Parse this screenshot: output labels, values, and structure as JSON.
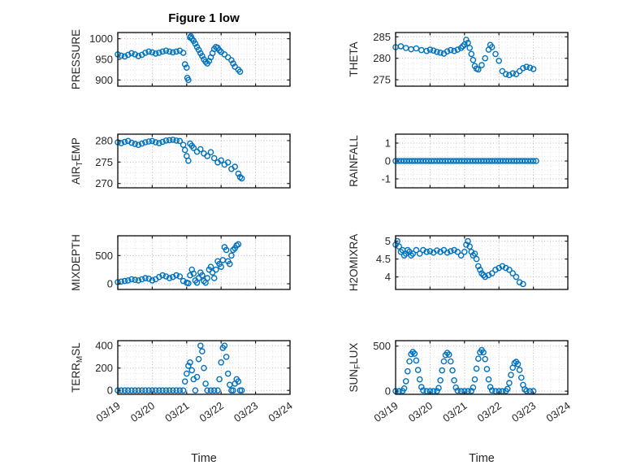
{
  "figure": {
    "title": "Figure 1 low",
    "marker_color": "#0072BD",
    "axis_color": "#1a1a1a",
    "grid_color": "#b8b8b8",
    "minor_grid_color": "#e2e2e2"
  },
  "x_axis": {
    "lim": [
      0,
      5
    ],
    "ticks": [
      0,
      1,
      2,
      3,
      4,
      5
    ],
    "labels": [
      "03/19",
      "03/20",
      "03/21",
      "03/22",
      "03/23",
      "03/24"
    ],
    "label": "Time"
  },
  "chart_data": [
    {
      "type": "scatter",
      "name": "pressure",
      "ylabel_segments": [
        {
          "t": "PRESSURE"
        }
      ],
      "ylim": [
        885,
        1015
      ],
      "yticks": [
        900,
        950,
        1000
      ],
      "x": [
        0,
        0.1,
        0.2,
        0.3,
        0.4,
        0.5,
        0.6,
        0.7,
        0.8,
        0.9,
        1.0,
        1.1,
        1.2,
        1.3,
        1.4,
        1.5,
        1.6,
        1.7,
        1.8,
        1.9,
        1.95,
        2.0,
        2.02,
        2.05,
        2.1,
        2.12,
        2.15,
        2.2,
        2.25,
        2.3,
        2.35,
        2.4,
        2.45,
        2.5,
        2.55,
        2.6,
        2.65,
        2.7,
        2.75,
        2.8,
        2.85,
        2.9,
        2.95,
        3.0,
        3.1,
        3.2,
        3.3,
        3.35,
        3.4,
        3.5,
        3.55
      ],
      "y": [
        962,
        959,
        957,
        961,
        965,
        962,
        958,
        961,
        966,
        969,
        967,
        964,
        966,
        969,
        971,
        969,
        967,
        969,
        971,
        966,
        938,
        930,
        905,
        900,
        1003,
        1006,
        1000,
        995,
        988,
        980,
        973,
        965,
        958,
        950,
        944,
        940,
        946,
        955,
        965,
        975,
        980,
        978,
        972,
        968,
        962,
        955,
        948,
        940,
        932,
        925,
        920
      ]
    },
    {
      "type": "scatter",
      "name": "theta",
      "ylabel_segments": [
        {
          "t": "THETA"
        }
      ],
      "ylim": [
        273.5,
        286
      ],
      "yticks": [
        275,
        280,
        285
      ],
      "x": [
        0,
        0.15,
        0.3,
        0.45,
        0.6,
        0.75,
        0.9,
        1.0,
        1.1,
        1.2,
        1.3,
        1.4,
        1.5,
        1.6,
        1.7,
        1.8,
        1.9,
        1.95,
        2.0,
        2.05,
        2.1,
        2.15,
        2.2,
        2.25,
        2.3,
        2.35,
        2.4,
        2.5,
        2.6,
        2.7,
        2.75,
        2.8,
        2.9,
        3.0,
        3.1,
        3.2,
        3.3,
        3.4,
        3.5,
        3.6,
        3.7,
        3.8,
        3.9,
        4.0
      ],
      "y": [
        282.6,
        282.8,
        282.4,
        282.1,
        282.3,
        281.9,
        281.7,
        282.0,
        281.8,
        281.5,
        281.3,
        281.1,
        281.6,
        281.9,
        281.7,
        282.0,
        282.4,
        282.8,
        283.2,
        284.3,
        283.6,
        282.4,
        281.0,
        279.6,
        278.2,
        277.6,
        277.4,
        278.4,
        280.0,
        282.0,
        283.1,
        282.6,
        281.0,
        279.4,
        277.0,
        276.3,
        276.1,
        276.5,
        276.3,
        277.0,
        277.7,
        278.0,
        277.8,
        277.5
      ]
    },
    {
      "type": "scatter",
      "name": "air-temp",
      "ylabel_segments": [
        {
          "t": "AIR"
        },
        {
          "t": "T",
          "sub": true
        },
        {
          "t": "EMP"
        }
      ],
      "ylim": [
        269,
        281.5
      ],
      "yticks": [
        270,
        275,
        280
      ],
      "x": [
        0,
        0.1,
        0.2,
        0.3,
        0.4,
        0.5,
        0.6,
        0.7,
        0.8,
        0.9,
        1.0,
        1.1,
        1.2,
        1.3,
        1.4,
        1.5,
        1.6,
        1.7,
        1.8,
        1.9,
        1.95,
        2.0,
        2.05,
        2.1,
        2.15,
        2.2,
        2.3,
        2.4,
        2.5,
        2.6,
        2.7,
        2.8,
        2.9,
        3.0,
        3.1,
        3.2,
        3.3,
        3.4,
        3.5,
        3.55,
        3.6
      ],
      "y": [
        279.6,
        279.4,
        279.7,
        279.9,
        279.5,
        279.2,
        279.0,
        279.3,
        279.6,
        279.8,
        279.9,
        279.6,
        279.4,
        279.7,
        280.0,
        280.1,
        280.2,
        280.0,
        279.9,
        279.0,
        277.8,
        276.4,
        275.3,
        279.3,
        278.8,
        278.3,
        277.4,
        278.0,
        277.0,
        276.4,
        277.3,
        275.9,
        274.9,
        275.4,
        274.4,
        274.9,
        273.4,
        273.9,
        272.3,
        271.5,
        271.2
      ]
    },
    {
      "type": "scatter",
      "name": "rainfall",
      "ylabel_segments": [
        {
          "t": "RAINFALL"
        }
      ],
      "ylim": [
        -1.5,
        1.5
      ],
      "yticks": [
        -1,
        0,
        1
      ],
      "x": [
        0,
        0.08,
        0.16,
        0.24,
        0.32,
        0.4,
        0.48,
        0.56,
        0.64,
        0.72,
        0.8,
        0.88,
        0.96,
        1.04,
        1.12,
        1.2,
        1.28,
        1.36,
        1.44,
        1.52,
        1.6,
        1.68,
        1.76,
        1.84,
        1.92,
        2,
        2.08,
        2.16,
        2.24,
        2.32,
        2.4,
        2.48,
        2.56,
        2.64,
        2.72,
        2.8,
        2.88,
        2.96,
        3.04,
        3.12,
        3.2,
        3.28,
        3.36,
        3.44,
        3.52,
        3.6,
        3.68,
        3.76,
        3.84,
        3.92,
        4,
        4.08
      ],
      "y": [
        0,
        0,
        0,
        0,
        0,
        0,
        0,
        0,
        0,
        0,
        0,
        0,
        0,
        0,
        0,
        0,
        0,
        0,
        0,
        0,
        0,
        0,
        0,
        0,
        0,
        0,
        0,
        0,
        0,
        0,
        0,
        0,
        0,
        0,
        0,
        0,
        0,
        0,
        0,
        0,
        0,
        0,
        0,
        0,
        0,
        0,
        0,
        0,
        0,
        0,
        0,
        0
      ]
    },
    {
      "type": "scatter",
      "name": "mixdepth",
      "ylabel_segments": [
        {
          "t": "MIXDEPTH"
        }
      ],
      "ylim": [
        -100,
        850
      ],
      "yticks": [
        0,
        500
      ],
      "x": [
        0,
        0.1,
        0.2,
        0.3,
        0.4,
        0.5,
        0.6,
        0.7,
        0.8,
        0.9,
        1.0,
        1.1,
        1.2,
        1.3,
        1.4,
        1.5,
        1.6,
        1.7,
        1.8,
        1.9,
        2.0,
        2.05,
        2.1,
        2.15,
        2.2,
        2.25,
        2.3,
        2.35,
        2.4,
        2.45,
        2.5,
        2.55,
        2.6,
        2.65,
        2.7,
        2.75,
        2.8,
        2.85,
        2.9,
        2.95,
        3.0,
        3.05,
        3.1,
        3.15,
        3.2,
        3.25,
        3.3,
        3.35,
        3.4,
        3.45,
        3.5
      ],
      "y": [
        30,
        40,
        50,
        60,
        80,
        70,
        60,
        80,
        100,
        90,
        60,
        80,
        120,
        150,
        130,
        100,
        120,
        150,
        130,
        50,
        20,
        10,
        150,
        250,
        180,
        60,
        20,
        100,
        200,
        150,
        50,
        20,
        100,
        250,
        300,
        200,
        100,
        250,
        400,
        350,
        300,
        420,
        650,
        600,
        400,
        350,
        500,
        600,
        630,
        680,
        700
      ]
    },
    {
      "type": "scatter",
      "name": "h2omixra",
      "ylabel_segments": [
        {
          "t": "H2OMIXRA"
        }
      ],
      "ylim": [
        3.65,
        5.15
      ],
      "yticks": [
        4,
        4.5,
        5
      ],
      "x": [
        0,
        0.05,
        0.1,
        0.15,
        0.2,
        0.25,
        0.3,
        0.35,
        0.4,
        0.45,
        0.5,
        0.6,
        0.7,
        0.8,
        0.9,
        1.0,
        1.1,
        1.2,
        1.3,
        1.4,
        1.5,
        1.6,
        1.7,
        1.8,
        1.9,
        2.0,
        2.05,
        2.1,
        2.15,
        2.2,
        2.25,
        2.3,
        2.35,
        2.4,
        2.45,
        2.5,
        2.55,
        2.6,
        2.7,
        2.8,
        2.9,
        3.0,
        3.1,
        3.2,
        3.3,
        3.4,
        3.5,
        3.6,
        3.7
      ],
      "y": [
        4.9,
        5.0,
        4.85,
        4.7,
        4.75,
        4.6,
        4.65,
        4.75,
        4.7,
        4.6,
        4.65,
        4.75,
        4.65,
        4.75,
        4.7,
        4.72,
        4.68,
        4.74,
        4.7,
        4.75,
        4.68,
        4.72,
        4.75,
        4.7,
        4.6,
        4.7,
        4.9,
        5.0,
        4.85,
        4.7,
        4.6,
        4.65,
        4.5,
        4.3,
        4.2,
        4.1,
        4.05,
        4.0,
        4.05,
        4.1,
        4.2,
        4.25,
        4.3,
        4.25,
        4.2,
        4.1,
        4.0,
        3.85,
        3.8
      ]
    },
    {
      "type": "scatter",
      "name": "terr-msl",
      "ylabel_segments": [
        {
          "t": "TERR"
        },
        {
          "t": "M",
          "sub": true
        },
        {
          "t": "SL"
        }
      ],
      "ylim": [
        -35,
        445
      ],
      "yticks": [
        0,
        200,
        400
      ],
      "x": [
        0,
        0.1,
        0.2,
        0.3,
        0.4,
        0.5,
        0.6,
        0.7,
        0.8,
        0.9,
        1.0,
        1.1,
        1.2,
        1.3,
        1.4,
        1.5,
        1.6,
        1.7,
        1.8,
        1.9,
        1.95,
        2.0,
        2.05,
        2.1,
        2.15,
        2.2,
        2.25,
        2.3,
        2.35,
        2.4,
        2.45,
        2.5,
        2.55,
        2.6,
        2.7,
        2.8,
        2.9,
        2.95,
        3.0,
        3.05,
        3.1,
        3.15,
        3.2,
        3.25,
        3.3,
        3.35,
        3.4,
        3.45,
        3.5,
        3.55,
        3.6
      ],
      "y": [
        0,
        0,
        0,
        0,
        0,
        0,
        0,
        0,
        0,
        0,
        0,
        0,
        0,
        0,
        0,
        0,
        0,
        0,
        0,
        0,
        80,
        150,
        220,
        250,
        180,
        100,
        0,
        120,
        280,
        400,
        350,
        200,
        60,
        0,
        0,
        0,
        0,
        100,
        250,
        380,
        400,
        300,
        150,
        50,
        0,
        0,
        60,
        100,
        80,
        0,
        0
      ]
    },
    {
      "type": "scatter",
      "name": "sun-flux",
      "ylabel_segments": [
        {
          "t": "SUN"
        },
        {
          "t": "F",
          "sub": true
        },
        {
          "t": "LUX"
        }
      ],
      "ylim": [
        -35,
        560
      ],
      "yticks": [
        0,
        500
      ],
      "x": [
        0,
        0.1,
        0.2,
        0.25,
        0.3,
        0.35,
        0.4,
        0.45,
        0.5,
        0.55,
        0.6,
        0.65,
        0.7,
        0.75,
        0.8,
        0.9,
        1.0,
        1.1,
        1.2,
        1.25,
        1.3,
        1.35,
        1.4,
        1.45,
        1.5,
        1.55,
        1.6,
        1.65,
        1.7,
        1.75,
        1.8,
        1.9,
        2.0,
        2.1,
        2.2,
        2.25,
        2.3,
        2.35,
        2.4,
        2.45,
        2.5,
        2.55,
        2.6,
        2.65,
        2.7,
        2.75,
        2.8,
        2.9,
        3.0,
        3.1,
        3.2,
        3.25,
        3.3,
        3.35,
        3.4,
        3.45,
        3.5,
        3.55,
        3.6,
        3.65,
        3.7,
        3.75,
        3.8,
        3.9,
        4.0
      ],
      "y": [
        0,
        0,
        2,
        30,
        110,
        220,
        330,
        410,
        435,
        415,
        340,
        235,
        130,
        45,
        8,
        0,
        0,
        0,
        2,
        35,
        120,
        230,
        330,
        400,
        425,
        405,
        330,
        230,
        120,
        40,
        6,
        0,
        0,
        0,
        3,
        40,
        130,
        250,
        360,
        430,
        455,
        430,
        355,
        245,
        130,
        45,
        8,
        0,
        0,
        0,
        2,
        25,
        90,
        180,
        260,
        310,
        325,
        300,
        235,
        150,
        70,
        20,
        3,
        0,
        0
      ]
    }
  ]
}
